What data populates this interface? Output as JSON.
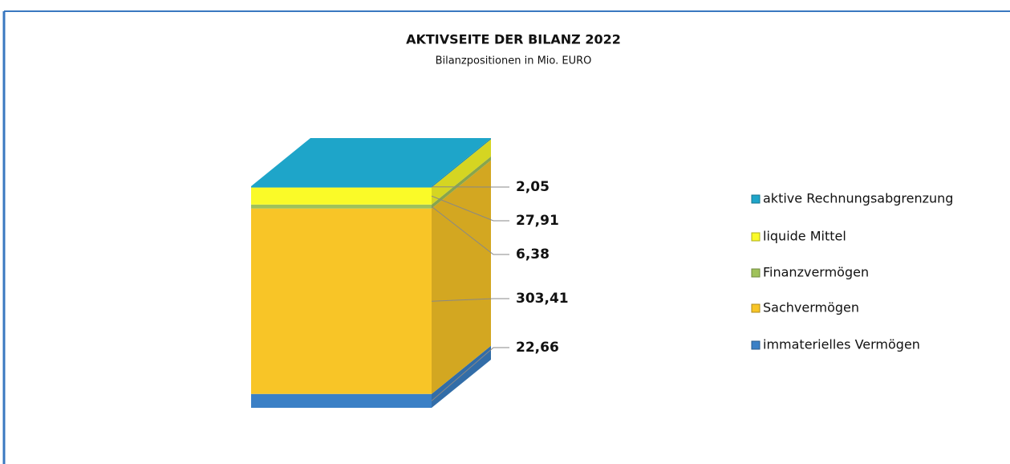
{
  "chart_data": {
    "type": "bar",
    "stacked": true,
    "three_d": true,
    "title": "AKTIVSEITE DER BILANZ 2022",
    "subtitle": "Bilanzpositionen in Mio. EURO",
    "categories": [
      null
    ],
    "series": [
      {
        "name": "immaterielles Vermögen",
        "color": "#3b80c6",
        "values": [
          22.66
        ],
        "value_labels": [
          "22,66"
        ]
      },
      {
        "name": "Sachvermögen",
        "color": "#f8c527",
        "values": [
          303.41
        ],
        "value_labels": [
          "303,41"
        ]
      },
      {
        "name": "Finanzvermögen",
        "color": "#9fc25a",
        "values": [
          6.38
        ],
        "value_labels": [
          "6,38"
        ]
      },
      {
        "name": "liquide Mittel",
        "color": "#fafa28",
        "values": [
          27.91
        ],
        "value_labels": [
          "27,91"
        ]
      },
      {
        "name": "aktive Rechnungsabgrenzung",
        "color": "#1ea5c9",
        "values": [
          2.05
        ],
        "value_labels": [
          "2,05"
        ]
      }
    ],
    "legend": "right"
  }
}
